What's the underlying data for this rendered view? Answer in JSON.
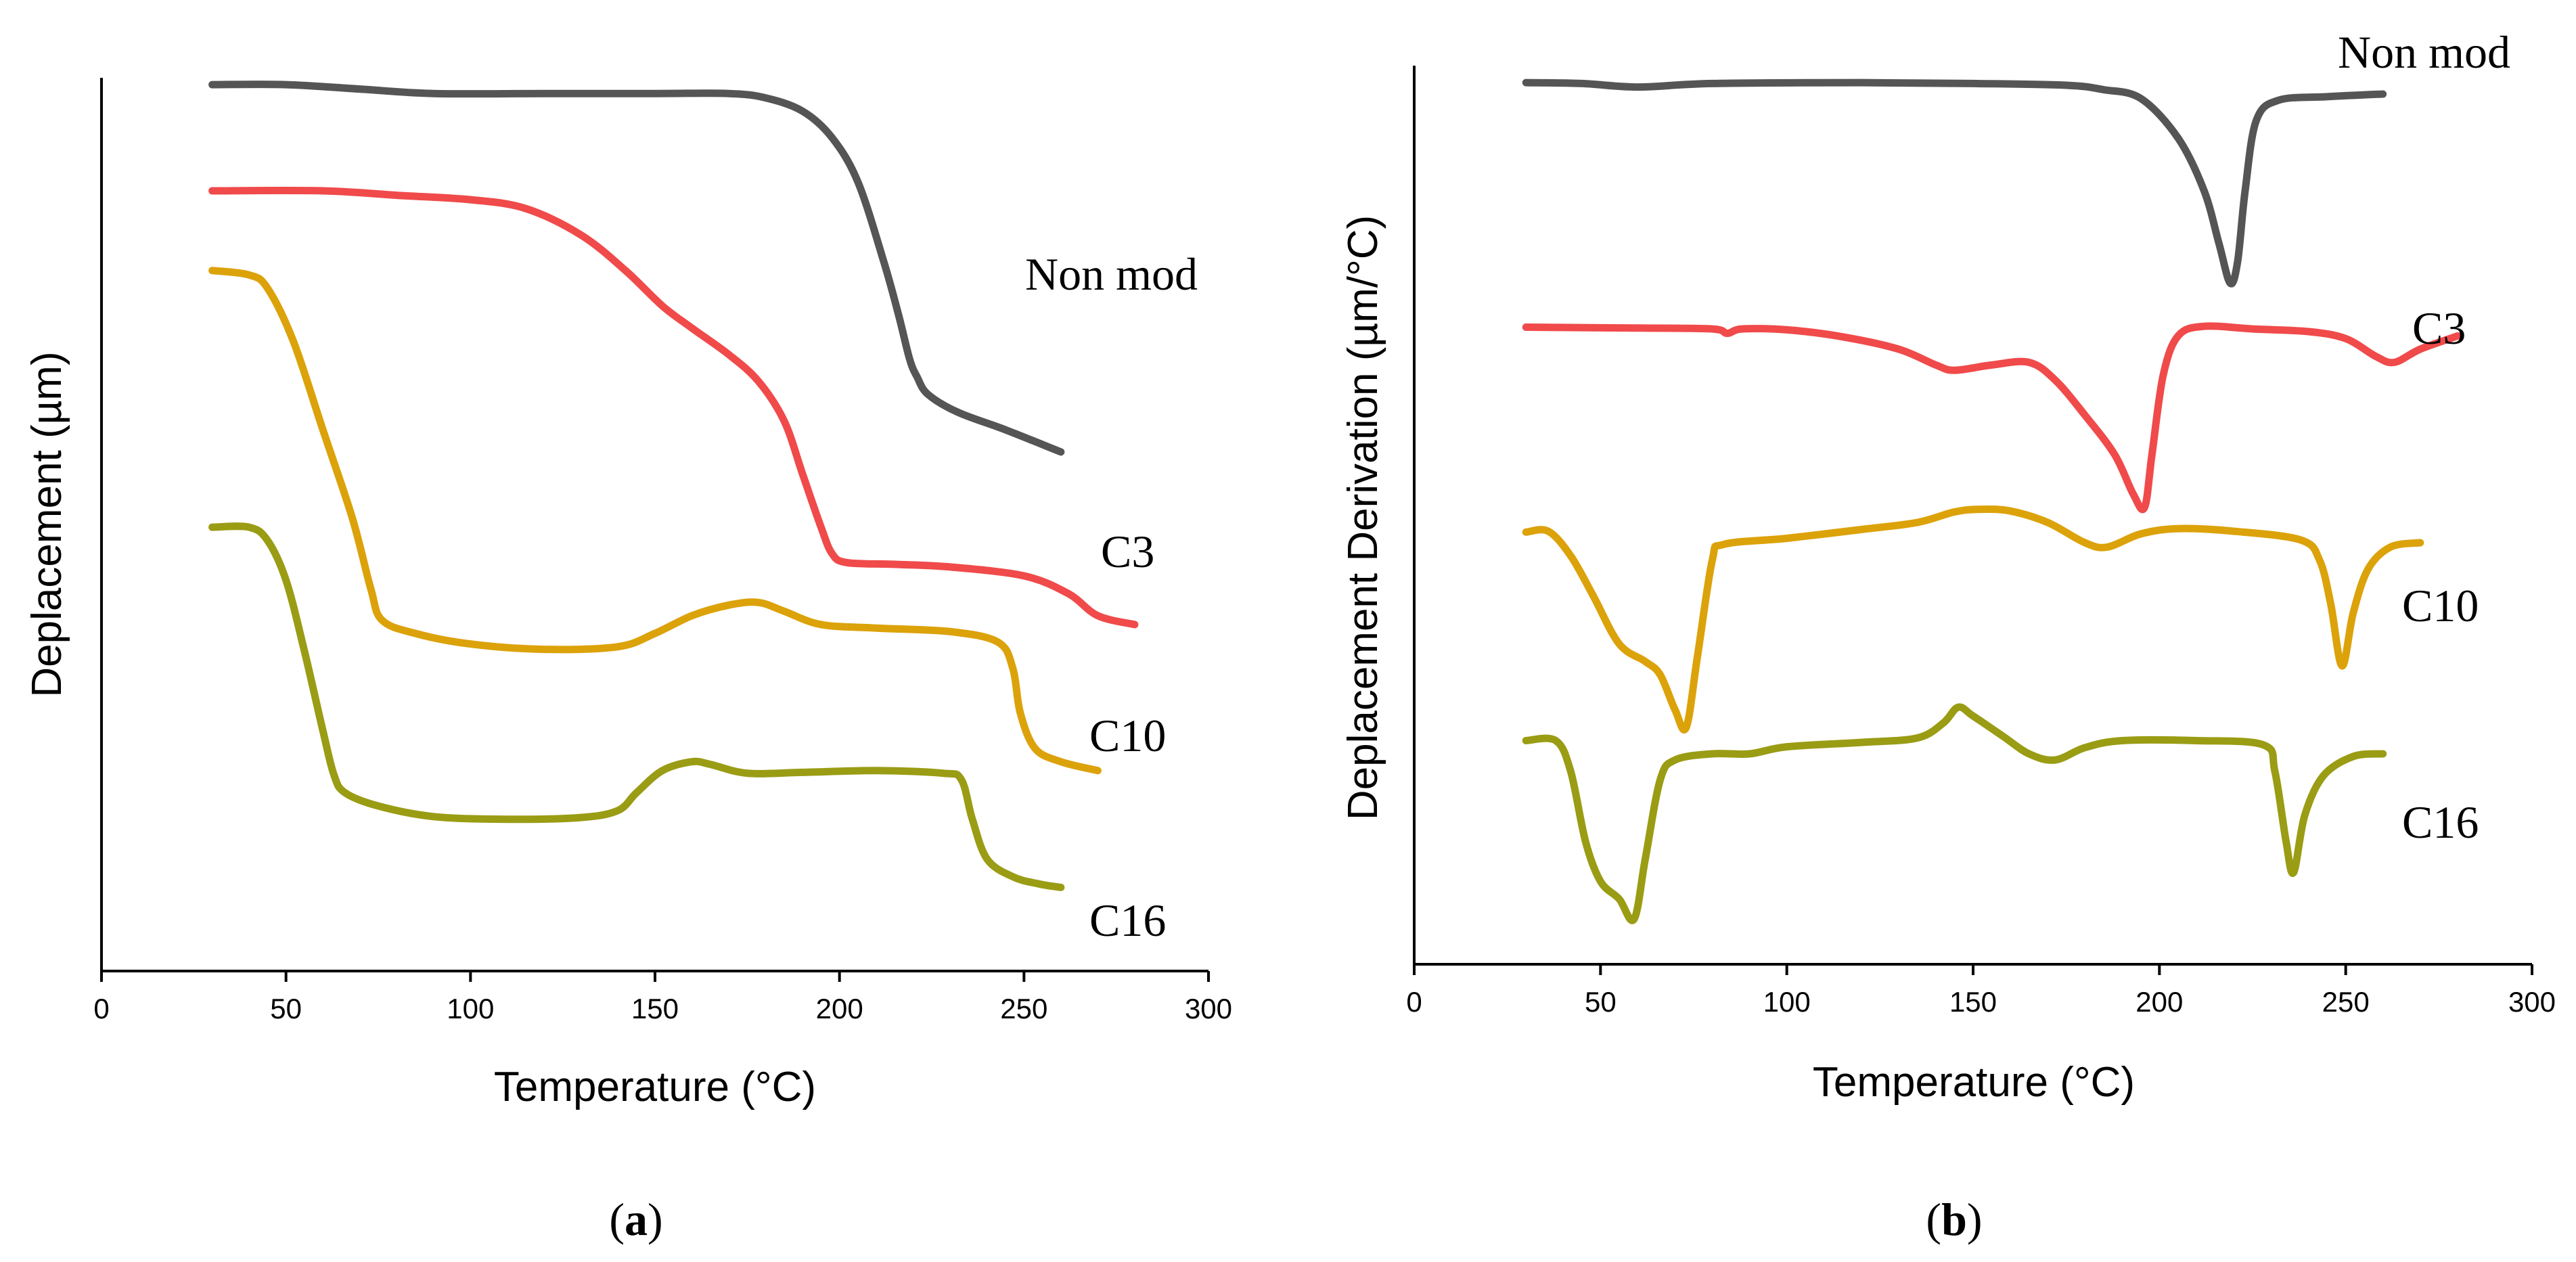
{
  "chart_data": [
    {
      "id": "a",
      "type": "line",
      "panel_label_open": "(",
      "panel_label_letter": "a",
      "panel_label_close": ")",
      "title": "",
      "xlabel": "Temperature (°C)",
      "ylabel": "Deplacement (µm)",
      "xlim": [
        0,
        300
      ],
      "ylim": [
        0,
        100
      ],
      "xticks": [
        0,
        50,
        100,
        150,
        200,
        250,
        300
      ],
      "yticks_shown": false,
      "grid": false,
      "series": [
        {
          "name": "Non mod",
          "color": "#555555",
          "points": [
            [
              30,
              99
            ],
            [
              50,
              99
            ],
            [
              70,
              98.5
            ],
            [
              90,
              98
            ],
            [
              120,
              98
            ],
            [
              150,
              98
            ],
            [
              170,
              98
            ],
            [
              180,
              97.5
            ],
            [
              190,
              96
            ],
            [
              198,
              93
            ],
            [
              205,
              88
            ],
            [
              212,
              79
            ],
            [
              216,
              73
            ],
            [
              219,
              68
            ],
            [
              221,
              66
            ],
            [
              224,
              64
            ],
            [
              232,
              62
            ],
            [
              245,
              60
            ],
            [
              260,
              57.5
            ]
          ]
        },
        {
          "name": "C3",
          "color": "#f04a4a",
          "points": [
            [
              30,
              87
            ],
            [
              60,
              87
            ],
            [
              80,
              86.5
            ],
            [
              100,
              86
            ],
            [
              115,
              85
            ],
            [
              130,
              82
            ],
            [
              142,
              78
            ],
            [
              152,
              74
            ],
            [
              160,
              71.5
            ],
            [
              170,
              68.5
            ],
            [
              178,
              65.5
            ],
            [
              185,
              61
            ],
            [
              190,
              55
            ],
            [
              195,
              49
            ],
            [
              198,
              46
            ],
            [
              202,
              45
            ],
            [
              215,
              44.8
            ],
            [
              230,
              44.5
            ],
            [
              250,
              43.5
            ],
            [
              262,
              41.5
            ],
            [
              270,
              39
            ],
            [
              280,
              38
            ]
          ]
        },
        {
          "name": "C10",
          "color": "#dca20a",
          "points": [
            [
              30,
              78
            ],
            [
              40,
              77.5
            ],
            [
              45,
              76
            ],
            [
              52,
              70
            ],
            [
              60,
              60
            ],
            [
              68,
              50
            ],
            [
              73,
              42
            ],
            [
              76,
              38.5
            ],
            [
              85,
              37
            ],
            [
              100,
              35.8
            ],
            [
              120,
              35.2
            ],
            [
              140,
              35.5
            ],
            [
              150,
              37
            ],
            [
              160,
              39
            ],
            [
              170,
              40.2
            ],
            [
              178,
              40.5
            ],
            [
              185,
              39.5
            ],
            [
              195,
              38
            ],
            [
              210,
              37.6
            ],
            [
              230,
              37.2
            ],
            [
              243,
              36
            ],
            [
              247,
              33
            ],
            [
              249,
              28
            ],
            [
              253,
              24
            ],
            [
              260,
              22.5
            ],
            [
              270,
              21.5
            ]
          ]
        },
        {
          "name": "C16",
          "color": "#9a9c14",
          "points": [
            [
              30,
              49
            ],
            [
              40,
              49
            ],
            [
              45,
              47.5
            ],
            [
              50,
              43
            ],
            [
              55,
              35
            ],
            [
              60,
              26
            ],
            [
              63,
              21
            ],
            [
              66,
              19
            ],
            [
              75,
              17.5
            ],
            [
              90,
              16.3
            ],
            [
              110,
              16
            ],
            [
              130,
              16.2
            ],
            [
              140,
              17
            ],
            [
              145,
              19
            ],
            [
              152,
              21.5
            ],
            [
              160,
              22.5
            ],
            [
              165,
              22.2
            ],
            [
              175,
              21.2
            ],
            [
              190,
              21.3
            ],
            [
              210,
              21.5
            ],
            [
              228,
              21.2
            ],
            [
              233,
              20.5
            ],
            [
              236,
              16
            ],
            [
              240,
              11.5
            ],
            [
              247,
              9.5
            ],
            [
              254,
              8.7
            ],
            [
              260,
              8.3
            ]
          ]
        }
      ]
    },
    {
      "id": "b",
      "type": "line",
      "panel_label_open": "(",
      "panel_label_letter": "b",
      "panel_label_close": ")",
      "title": "",
      "xlabel": "Temperature (°C)",
      "ylabel": "Deplacement Derivation (µm/°C)",
      "xlim": [
        0,
        300
      ],
      "ylim": [
        0,
        100
      ],
      "xticks": [
        0,
        50,
        100,
        150,
        200,
        250,
        300
      ],
      "yticks_shown": false,
      "grid": false,
      "series": [
        {
          "name": "Non mod",
          "color": "#555555",
          "points": [
            [
              30,
              98.3
            ],
            [
              45,
              98.2
            ],
            [
              60,
              97.8
            ],
            [
              80,
              98.2
            ],
            [
              120,
              98.3
            ],
            [
              150,
              98.2
            ],
            [
              175,
              98
            ],
            [
              185,
              97.5
            ],
            [
              195,
              96.5
            ],
            [
              205,
              92
            ],
            [
              212,
              86
            ],
            [
              216,
              80
            ],
            [
              219,
              75.5
            ],
            [
              221,
              78
            ],
            [
              223,
              86
            ],
            [
              226,
              94
            ],
            [
              232,
              96.3
            ],
            [
              245,
              96.7
            ],
            [
              260,
              97
            ]
          ]
        },
        {
          "name": "C3",
          "color": "#f04a4a",
          "points": [
            [
              30,
              70.5
            ],
            [
              60,
              70.4
            ],
            [
              80,
              70.3
            ],
            [
              84,
              69.8
            ],
            [
              88,
              70.3
            ],
            [
              100,
              70.2
            ],
            [
              115,
              69.4
            ],
            [
              130,
              68
            ],
            [
              140,
              66.2
            ],
            [
              145,
              65.6
            ],
            [
              155,
              66.2
            ],
            [
              165,
              66.5
            ],
            [
              172,
              64.5
            ],
            [
              180,
              60.5
            ],
            [
              188,
              56
            ],
            [
              193,
              51.5
            ],
            [
              196,
              50
            ],
            [
              198,
              56
            ],
            [
              201,
              65
            ],
            [
              205,
              69.5
            ],
            [
              212,
              70.6
            ],
            [
              225,
              70.3
            ],
            [
              240,
              70
            ],
            [
              250,
              69.2
            ],
            [
              258,
              67.2
            ],
            [
              263,
              66.5
            ],
            [
              270,
              68
            ],
            [
              280,
              69.5
            ]
          ]
        },
        {
          "name": "C10",
          "color": "#dca20a",
          "points": [
            [
              30,
              47.2
            ],
            [
              36,
              47.3
            ],
            [
              42,
              44.5
            ],
            [
              48,
              40
            ],
            [
              55,
              34.5
            ],
            [
              62,
              32.5
            ],
            [
              66,
              31
            ],
            [
              70,
              27
            ],
            [
              73,
              25
            ],
            [
              76,
              33
            ],
            [
              80,
              44
            ],
            [
              83,
              45.8
            ],
            [
              100,
              46.5
            ],
            [
              120,
              47.5
            ],
            [
              135,
              48.3
            ],
            [
              145,
              49.5
            ],
            [
              152,
              49.8
            ],
            [
              160,
              49.6
            ],
            [
              170,
              48.3
            ],
            [
              180,
              46
            ],
            [
              186,
              45.5
            ],
            [
              195,
              47
            ],
            [
              205,
              47.6
            ],
            [
              220,
              47.3
            ],
            [
              238,
              46.3
            ],
            [
              243,
              44
            ],
            [
              246,
              39
            ],
            [
              249,
              32
            ],
            [
              252,
              38
            ],
            [
              256,
              43
            ],
            [
              262,
              45.5
            ],
            [
              270,
              46
            ]
          ]
        },
        {
          "name": "C16",
          "color": "#9a9c14",
          "points": [
            [
              30,
              23.5
            ],
            [
              38,
              23.5
            ],
            [
              42,
              20
            ],
            [
              46,
              12
            ],
            [
              50,
              7.5
            ],
            [
              55,
              5.5
            ],
            [
              59,
              3.2
            ],
            [
              62,
              10
            ],
            [
              66,
              19
            ],
            [
              70,
              21.3
            ],
            [
              80,
              22
            ],
            [
              90,
              22
            ],
            [
              100,
              22.8
            ],
            [
              120,
              23.3
            ],
            [
              135,
              23.8
            ],
            [
              142,
              25.5
            ],
            [
              146,
              27.3
            ],
            [
              150,
              26.3
            ],
            [
              158,
              24
            ],
            [
              165,
              22
            ],
            [
              172,
              21.3
            ],
            [
              180,
              22.7
            ],
            [
              190,
              23.5
            ],
            [
              210,
              23.5
            ],
            [
              228,
              23
            ],
            [
              231,
              20
            ],
            [
              234,
              12
            ],
            [
              236,
              8.5
            ],
            [
              239,
              15
            ],
            [
              244,
              19.5
            ],
            [
              252,
              21.7
            ],
            [
              260,
              22
            ]
          ]
        }
      ]
    }
  ]
}
